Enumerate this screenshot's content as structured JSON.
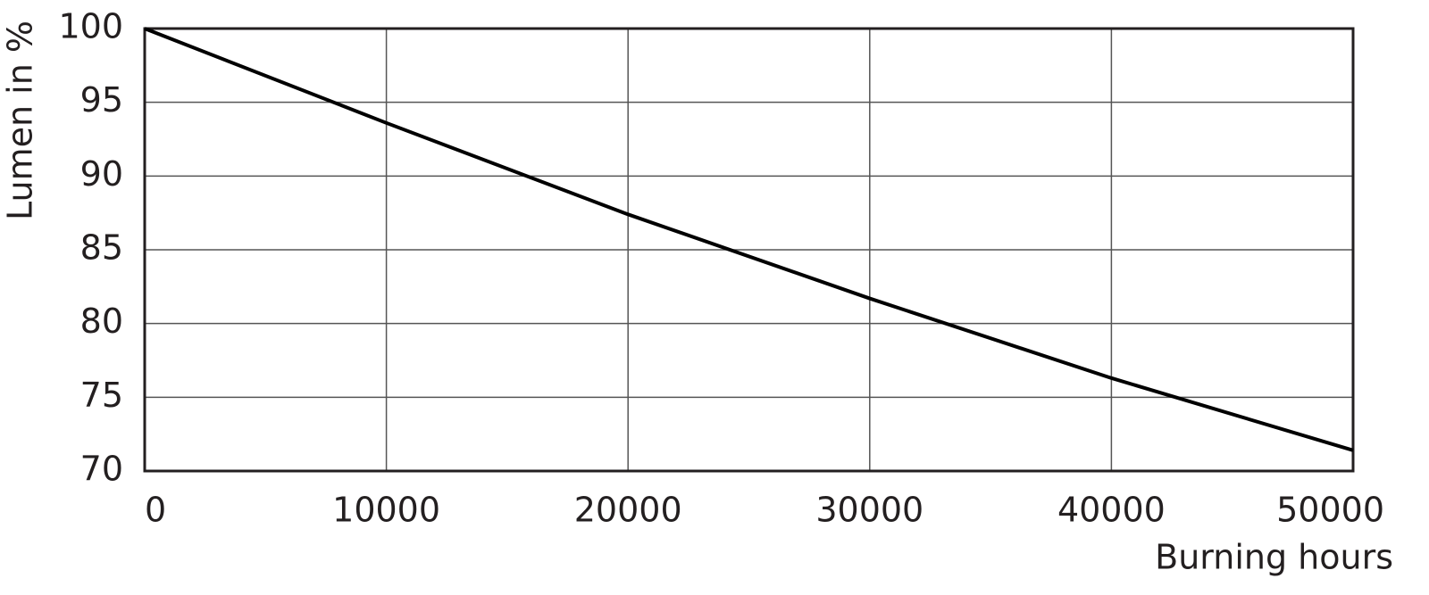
{
  "chart_data": {
    "type": "line",
    "x": [
      0,
      10000,
      20000,
      30000,
      40000,
      50000
    ],
    "values": [
      100,
      93.6,
      87.4,
      81.7,
      76.3,
      71.4
    ],
    "color": "#000000",
    "xlabel": "Burning hours",
    "ylabel": "Lumen in %",
    "xlim": [
      0,
      50000
    ],
    "xticks": [
      0,
      10000,
      20000,
      30000,
      40000,
      50000
    ],
    "ylim": [
      70,
      100
    ],
    "yticks": [
      70,
      75,
      80,
      85,
      90,
      95,
      100
    ],
    "grid": true
  }
}
